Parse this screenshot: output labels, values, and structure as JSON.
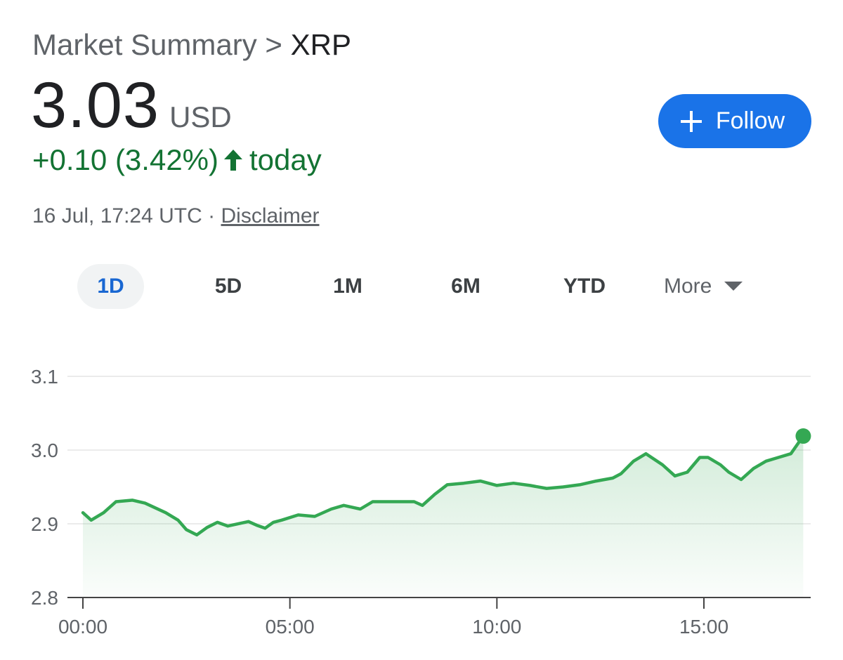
{
  "breadcrumb": {
    "parent": "Market Summary",
    "separator": ">",
    "current": "XRP"
  },
  "quote": {
    "price": "3.03",
    "currency": "USD",
    "change": "+0.10 (3.42%)",
    "change_suffix": "today",
    "timestamp": "16 Jul, 17:24 UTC",
    "separator": "·",
    "disclaimer": "Disclaimer"
  },
  "follow_button": {
    "icon": "plus-icon",
    "label": "Follow"
  },
  "range_tabs": [
    {
      "label": "1D",
      "active": true
    },
    {
      "label": "5D",
      "active": false
    },
    {
      "label": "1M",
      "active": false
    },
    {
      "label": "6M",
      "active": false
    },
    {
      "label": "YTD",
      "active": false
    }
  ],
  "more_menu": {
    "label": "More",
    "icon": "caret-down-icon"
  },
  "colors": {
    "accent": "#1a73e8",
    "positive": "#137333",
    "line": "#34a853",
    "active_tab": "#1967d2"
  },
  "chart_data": {
    "type": "area",
    "title": "",
    "xlabel": "",
    "ylabel": "",
    "x_unit": "hours",
    "xlim": [
      0,
      17.4
    ],
    "ylim": [
      2.8,
      3.1
    ],
    "x_ticks": [
      0,
      5,
      10,
      15
    ],
    "x_tick_labels": [
      "00:00",
      "05:00",
      "10:00",
      "15:00"
    ],
    "y_ticks": [
      2.8,
      2.9,
      3.0,
      3.1
    ],
    "y_tick_labels": [
      "2.8",
      "2.9",
      "3.0",
      "3.1"
    ],
    "grid": true,
    "series": [
      {
        "x": [
          0,
          0.2,
          0.5,
          0.8,
          1.2,
          1.5,
          2.0,
          2.3,
          2.5,
          2.75,
          3.0,
          3.25,
          3.5,
          4.0,
          4.2,
          4.4,
          4.6,
          4.8,
          5.2,
          5.6,
          6.0,
          6.3,
          6.7,
          7.0,
          7.4,
          8.0,
          8.2,
          8.5,
          8.8,
          9.2,
          9.6,
          10.0,
          10.4,
          10.8,
          11.2,
          11.6,
          12.0,
          12.4,
          12.8,
          13.0,
          13.3,
          13.6,
          14.0,
          14.3,
          14.6,
          14.9,
          15.1,
          15.4,
          15.6,
          15.9,
          16.2,
          16.5,
          16.8,
          17.1,
          17.4
        ],
        "y": [
          2.915,
          2.905,
          2.915,
          2.93,
          2.932,
          2.928,
          2.915,
          2.905,
          2.892,
          2.885,
          2.895,
          2.902,
          2.897,
          2.903,
          2.898,
          2.894,
          2.902,
          2.905,
          2.912,
          2.91,
          2.92,
          2.925,
          2.92,
          2.93,
          2.93,
          2.93,
          2.925,
          2.94,
          2.953,
          2.955,
          2.958,
          2.952,
          2.955,
          2.952,
          2.948,
          2.95,
          2.953,
          2.958,
          2.962,
          2.968,
          2.985,
          2.995,
          2.98,
          2.965,
          2.97,
          2.99,
          2.99,
          2.98,
          2.97,
          2.96,
          2.975,
          2.985,
          2.99,
          2.995,
          3.019
        ]
      }
    ]
  }
}
